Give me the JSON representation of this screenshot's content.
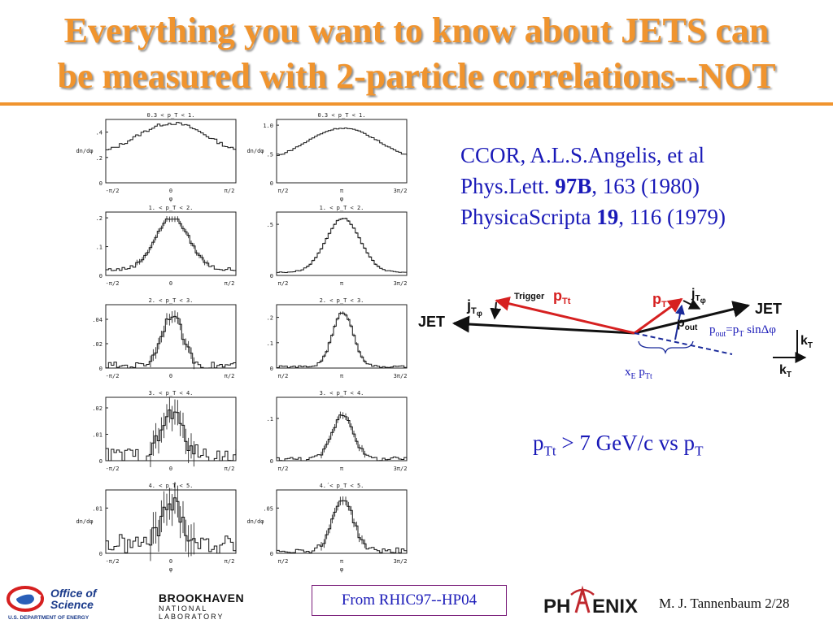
{
  "title": {
    "line1": "Everything you want to know about JETS can",
    "line2": "be measured with 2-particle correlations--NOT"
  },
  "reference": {
    "line1": "CCOR, A.L.S.Angelis, et al",
    "line2_prefix": "Phys.Lett. ",
    "line2_bold": "97B",
    "line2_suffix": ", 163 (1980)",
    "line3_prefix": "PhysicaScripta ",
    "line3_bold": "19",
    "line3_suffix": ", 116 (1979)"
  },
  "diagram": {
    "jet_left": "JET",
    "jet_right": "JET",
    "jt_phi_left": "j",
    "jt_phi_left_sub": "T",
    "jt_phi_left_subsub": "φ",
    "trigger": "Trigger",
    "ptt": "p",
    "ptt_sub": "Tt",
    "pt": "p",
    "pt_sub": "T",
    "jt_phi_right": "j",
    "jt_phi_right_sub": "T",
    "jt_phi_right_subsub": "φ",
    "pout": "p",
    "pout_sub": "out",
    "pout_eq": "p",
    "pout_eq_sub": "out",
    "pout_eq_mid": "=p",
    "pout_eq_sub2": "T",
    "pout_eq_end": " sinΔφ",
    "kt": "k",
    "kt_sub": "T",
    "kt2": "k",
    "kt2_sub": "T",
    "xe_label": "x",
    "xe_sub": "E",
    "xe_pt": " p",
    "xe_pt_sub": "Tt"
  },
  "pt_line": {
    "p1": "p",
    "p1_sub": "Tt",
    "mid": " > 7 GeV/c vs p",
    "p2_sub": "T"
  },
  "footer": {
    "office": "Office of",
    "science": "Science",
    "doe": "U.S. DEPARTMENT OF ENERGY",
    "bnl_top": "BROOKHAVEN",
    "bnl_bottom": "NATIONAL LABORATORY",
    "from": "From RHIC97--HP04",
    "phenix_left": "PH",
    "phenix_right": "ENIX",
    "author": "M. J. Tannenbaum   2/28"
  },
  "colors": {
    "title": "#f0942e",
    "text_blue": "#1a1ab8",
    "arrow_red": "#d62020",
    "arrow_blue": "#1a2a9a"
  },
  "chart_data": {
    "type": "line",
    "description_axes": "dn/dφ vs φ",
    "panels": [
      {
        "row": 0,
        "col": 0,
        "title": "0.3 < p_T < 1.",
        "xticks": [
          "-π/2",
          "0",
          "π/2"
        ],
        "xlabel": "φ",
        "ylabel": "dn/dφ",
        "yticks": [
          ".2",
          ".4"
        ],
        "ylim": [
          0,
          0.5
        ],
        "profile": "wide",
        "peak": 0.47,
        "base": 0.2,
        "noise": 0.012
      },
      {
        "row": 0,
        "col": 1,
        "title": "0.3 < p_T < 1.",
        "xticks": [
          "π/2",
          "π",
          "3π/2"
        ],
        "xlabel": "φ",
        "ylabel": "dn/dφ",
        "yticks": [
          ".5",
          "1.0"
        ],
        "ylim": [
          0,
          1.1
        ],
        "profile": "wide",
        "peak": 0.95,
        "base": 0.35,
        "noise": 0.01
      },
      {
        "row": 1,
        "col": 0,
        "title": "1. < p_T < 2.",
        "xticks": [
          "-π/2",
          "0",
          "π/2"
        ],
        "xlabel": "",
        "ylabel": "",
        "yticks": [
          ".1",
          ".2"
        ],
        "ylim": [
          0,
          0.22
        ],
        "profile": "medium",
        "peak": 0.2,
        "base": 0.02,
        "noise": 0.006
      },
      {
        "row": 1,
        "col": 1,
        "title": "1. < p_T < 2.",
        "xticks": [
          "π/2",
          "π",
          "3π/2"
        ],
        "xlabel": "",
        "ylabel": "",
        "yticks": [
          ".5"
        ],
        "ylim": [
          0,
          0.62
        ],
        "profile": "medium",
        "peak": 0.56,
        "base": 0.03,
        "noise": 0.005
      },
      {
        "row": 2,
        "col": 0,
        "title": "2. < p_T < 3.",
        "xticks": [
          "-π/2",
          "0",
          "π/2"
        ],
        "xlabel": "",
        "ylabel": "",
        "yticks": [
          ".02",
          ".04"
        ],
        "ylim": [
          0,
          0.052
        ],
        "profile": "narrow",
        "peak": 0.044,
        "base": 0.002,
        "noise": 0.003
      },
      {
        "row": 2,
        "col": 1,
        "title": "2. < p_T < 3.",
        "xticks": [
          "π/2",
          "π",
          "3π/2"
        ],
        "xlabel": "",
        "ylabel": "",
        "yticks": [
          ".1",
          ".2"
        ],
        "ylim": [
          0,
          0.25
        ],
        "profile": "narrow",
        "peak": 0.22,
        "base": 0.005,
        "noise": 0.004
      },
      {
        "row": 3,
        "col": 0,
        "title": "3. < p_T < 4.",
        "xticks": [
          "-π/2",
          "0",
          "π/2"
        ],
        "xlabel": "",
        "ylabel": "",
        "yticks": [
          ".01",
          ".02"
        ],
        "ylim": [
          0,
          0.024
        ],
        "profile": "narrow",
        "peak": 0.018,
        "base": 0.002,
        "noise": 0.003
      },
      {
        "row": 3,
        "col": 1,
        "title": "3. < p_T < 4.",
        "xticks": [
          "π/2",
          "π",
          "3π/2"
        ],
        "xlabel": "",
        "ylabel": "",
        "yticks": [
          ".1"
        ],
        "ylim": [
          0,
          0.15
        ],
        "profile": "narrow",
        "peak": 0.11,
        "base": 0.004,
        "noise": 0.005
      },
      {
        "row": 4,
        "col": 0,
        "title": "4. < p_T < 5.",
        "xticks": [
          "-π/2",
          "0",
          "π/2"
        ],
        "xlabel": "φ",
        "ylabel": "dn/dφ",
        "yticks": [
          ".01"
        ],
        "ylim": [
          0,
          0.014
        ],
        "profile": "narrow",
        "peak": 0.011,
        "base": 0.002,
        "noise": 0.0022
      },
      {
        "row": 4,
        "col": 1,
        "title": "4.´< p_T < 5.",
        "xticks": [
          "π/2",
          "π",
          "3π/2"
        ],
        "xlabel": "φ",
        "ylabel": "dn/dφ",
        "yticks": [
          ".05"
        ],
        "ylim": [
          0,
          0.07
        ],
        "profile": "narrow",
        "peak": 0.06,
        "base": 0.003,
        "noise": 0.003
      }
    ]
  }
}
